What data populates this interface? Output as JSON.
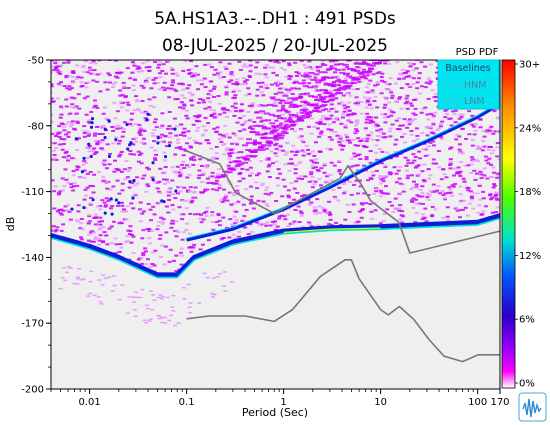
{
  "title": {
    "line1": "5A.HS1A3.--.DH1 : 491 PSDs",
    "line2": "08-JUL-2025 / 20-JUL-2025"
  },
  "colors": {
    "plot_background": "#efefef",
    "psd_density": "#cc00ff",
    "psd_density_light": "#e89bff",
    "psd_mode_blue": "#0b1fd8",
    "noise_model_line": "#777777",
    "legend_background": "#00e5ee",
    "legend_text": "#4f7fae"
  },
  "chart_data": {
    "type": "heatmap",
    "xlabel": "Period (Sec)",
    "ylabel": "dB",
    "x_scale": "log",
    "xlim": [
      0.004,
      170
    ],
    "ylim": [
      -200,
      -50
    ],
    "x_ticks": [
      {
        "value": 0.01,
        "label": "0.01"
      },
      {
        "value": 0.1,
        "label": "0.1"
      },
      {
        "value": 1,
        "label": "1"
      },
      {
        "value": 10,
        "label": "10"
      },
      {
        "value": 100,
        "label": "100"
      },
      {
        "value": 170,
        "label": "170"
      }
    ],
    "y_ticks": [
      {
        "value": -50,
        "label": "-50"
      },
      {
        "value": -80,
        "label": "-80"
      },
      {
        "value": -110,
        "label": "-110"
      },
      {
        "value": -140,
        "label": "-140"
      },
      {
        "value": -170,
        "label": "-170"
      },
      {
        "value": -200,
        "label": "-200"
      }
    ],
    "colorbar": {
      "title": "PSD PDF",
      "ticks": [
        "30+",
        "24%",
        "18%",
        "12%",
        "6%",
        "0%"
      ],
      "colors": [
        "#ff0000",
        "#ff8c00",
        "#ffff00",
        "#4cff00",
        "#00e0d0",
        "#0055ff",
        "#2800c8",
        "#9900ff",
        "#ff00ff",
        "#ffffff"
      ]
    },
    "legend": {
      "title": "Baselines",
      "entries": [
        "HNM",
        "LNM"
      ],
      "placement": "top-right"
    },
    "series": [
      {
        "name": "HNM",
        "x": [
          0.1,
          0.22,
          0.32,
          0.8,
          3.8,
          4.6,
          6.3,
          7.9,
          15.4,
          20,
          170
        ],
        "y": [
          -91.5,
          -97.4,
          -110.5,
          -120,
          -104,
          -98.3,
          -106.7,
          -114.2,
          -124,
          -138,
          -128
        ]
      },
      {
        "name": "LNM",
        "x": [
          0.1,
          0.17,
          0.4,
          0.8,
          1.24,
          2.4,
          4.3,
          5,
          6,
          10,
          12,
          15.6,
          21.9,
          31.6,
          45,
          70,
          101,
          170
        ],
        "y": [
          -168,
          -166.7,
          -166.7,
          -169.2,
          -163.7,
          -148.6,
          -141.1,
          -141.1,
          -149.7,
          -163.8,
          -166.2,
          -162.4,
          -168.2,
          -177.5,
          -185,
          -187.5,
          -184.4,
          -184.4
        ]
      }
    ],
    "pdf_mode": {
      "x": [
        0.004,
        0.007,
        0.01,
        0.02,
        0.05,
        0.08,
        0.12,
        0.3,
        1,
        3,
        10,
        30,
        100,
        170
      ],
      "y": [
        -130,
        -133,
        -135,
        -140,
        -148,
        -148,
        -140,
        -133,
        -128,
        -126.5,
        -126,
        -125,
        -124,
        -121
      ]
    },
    "high_branch": {
      "x": [
        0.1,
        0.3,
        1,
        3,
        10,
        30,
        100,
        170
      ],
      "y": [
        -132,
        -127,
        -118,
        -108,
        -96,
        -87,
        -76,
        -70
      ]
    }
  }
}
